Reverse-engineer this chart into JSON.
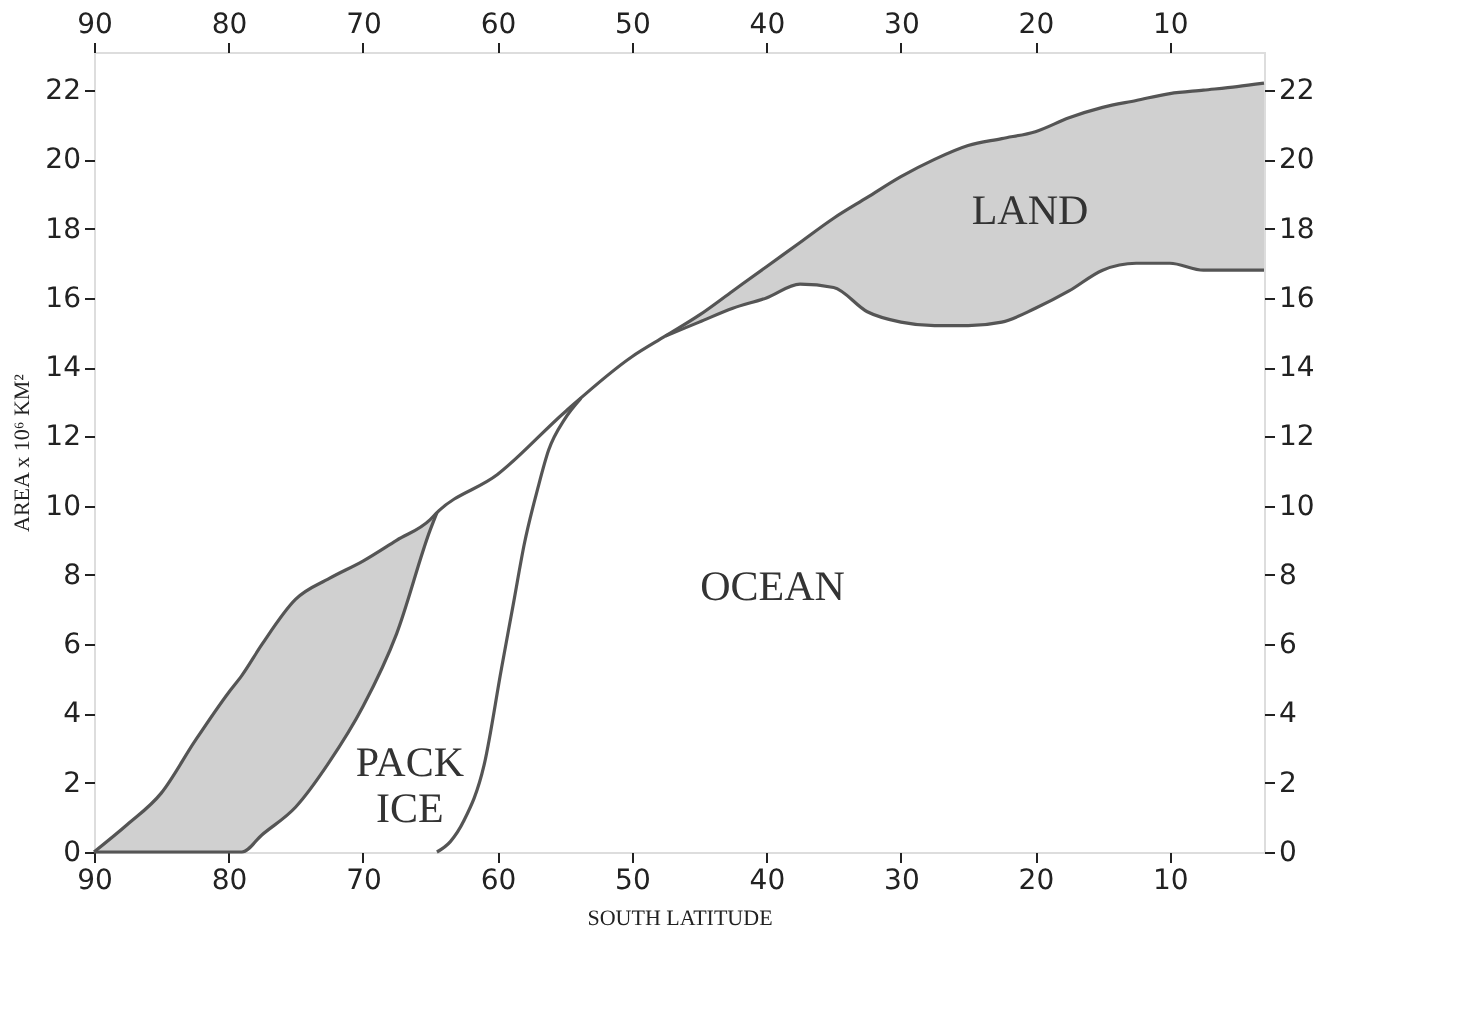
{
  "chart_data": {
    "type": "line",
    "xlabel": "SOUTH LATITUDE",
    "ylabel": "AREA  x 10⁶ KM²",
    "xlim": [
      90,
      3
    ],
    "xticks": [
      90,
      80,
      70,
      60,
      50,
      40,
      30,
      20,
      10
    ],
    "x2lim": [
      90,
      3
    ],
    "x2ticks": [
      90,
      80,
      70,
      60,
      50,
      40,
      30,
      20,
      10
    ],
    "ylim": [
      0,
      23.1
    ],
    "yticks": [
      0,
      2,
      4,
      6,
      8,
      10,
      12,
      14,
      16,
      18,
      20,
      22
    ],
    "y2lim": [
      0,
      23.1
    ],
    "y2ticks": [
      0,
      2,
      4,
      6,
      8,
      10,
      12,
      14,
      16,
      18,
      20,
      22
    ],
    "grid": false,
    "marker": "none",
    "line_style": "solid",
    "series": [
      {
        "color": "#555555",
        "x": [
          90,
          87.5,
          85,
          82.5,
          80,
          79,
          77.5,
          75,
          72.5,
          70,
          67.5,
          65,
          64.5,
          60,
          55,
          50,
          47.5,
          45,
          42.5,
          40,
          37.5,
          35,
          32.5,
          30,
          27.5,
          25,
          22.5,
          20,
          17.5,
          15,
          12.5,
          10,
          7.5,
          5,
          3
        ],
        "values": [
          0,
          0.8,
          1.7,
          3.2,
          4.6,
          5.1,
          6.0,
          7.3,
          7.9,
          8.4,
          9.0,
          9.6,
          9.8,
          10.9,
          12.7,
          14.3,
          14.9,
          15.5,
          16.2,
          16.9,
          17.6,
          18.3,
          18.9,
          19.5,
          20.0,
          20.4,
          20.6,
          20.8,
          21.2,
          21.5,
          21.7,
          21.9,
          22.0,
          22.1,
          22.2
        ]
      },
      {
        "color": "#555555",
        "x": [
          90,
          87.5,
          85,
          82.5,
          80,
          79,
          77.5,
          75,
          72.5,
          70,
          67.5,
          65,
          64.5
        ],
        "values": [
          0,
          0,
          0,
          0,
          0,
          0,
          0.5,
          1.3,
          2.6,
          4.2,
          6.3,
          9.3,
          9.8
        ],
        "lower": [
          0,
          0,
          0,
          0,
          0,
          0,
          0.5,
          1.3,
          2.6,
          4.2,
          6.3,
          9.3,
          9.8
        ],
        "upper": [
          0,
          0.8,
          1.7,
          3.2,
          4.6,
          5.1,
          6.0,
          7.3,
          7.9,
          8.4,
          9.0,
          9.6,
          9.8
        ]
      },
      {
        "color": "#555555",
        "x": [
          47.5,
          45,
          42.5,
          40,
          37.5,
          35,
          32.5,
          30,
          27.5,
          25,
          22.5,
          20,
          17.5,
          15,
          12.5,
          10,
          7.5,
          5,
          3
        ],
        "values": [
          14.9,
          15.3,
          15.7,
          16.0,
          16.4,
          16.3,
          15.6,
          15.3,
          15.2,
          15.2,
          15.3,
          15.7,
          16.2,
          16.8,
          17.0,
          17.0,
          16.8,
          16.8,
          16.8
        ],
        "lower": [
          14.9,
          15.3,
          15.7,
          16.0,
          16.4,
          16.3,
          15.6,
          15.3,
          15.2,
          15.2,
          15.3,
          15.7,
          16.2,
          16.8,
          17.0,
          17.0,
          16.8,
          16.8,
          16.8
        ],
        "upper": [
          14.9,
          15.5,
          16.2,
          16.9,
          17.6,
          18.3,
          18.9,
          19.5,
          20.0,
          20.4,
          20.6,
          20.8,
          21.2,
          21.5,
          21.7,
          21.9,
          22.0,
          22.1,
          22.2
        ]
      },
      {
        "color": "#555555",
        "x": [
          64.5,
          63.5,
          62.5,
          61,
          59.7,
          58.8,
          58,
          57,
          56.2,
          55,
          53.8
        ],
        "values": [
          0,
          0.3,
          0.9,
          2.5,
          5.3,
          7.2,
          8.9,
          10.5,
          11.6,
          12.5,
          13.1
        ]
      }
    ],
    "annotations": [
      "LAND",
      "OCEAN",
      "PACK ICE"
    ]
  }
}
